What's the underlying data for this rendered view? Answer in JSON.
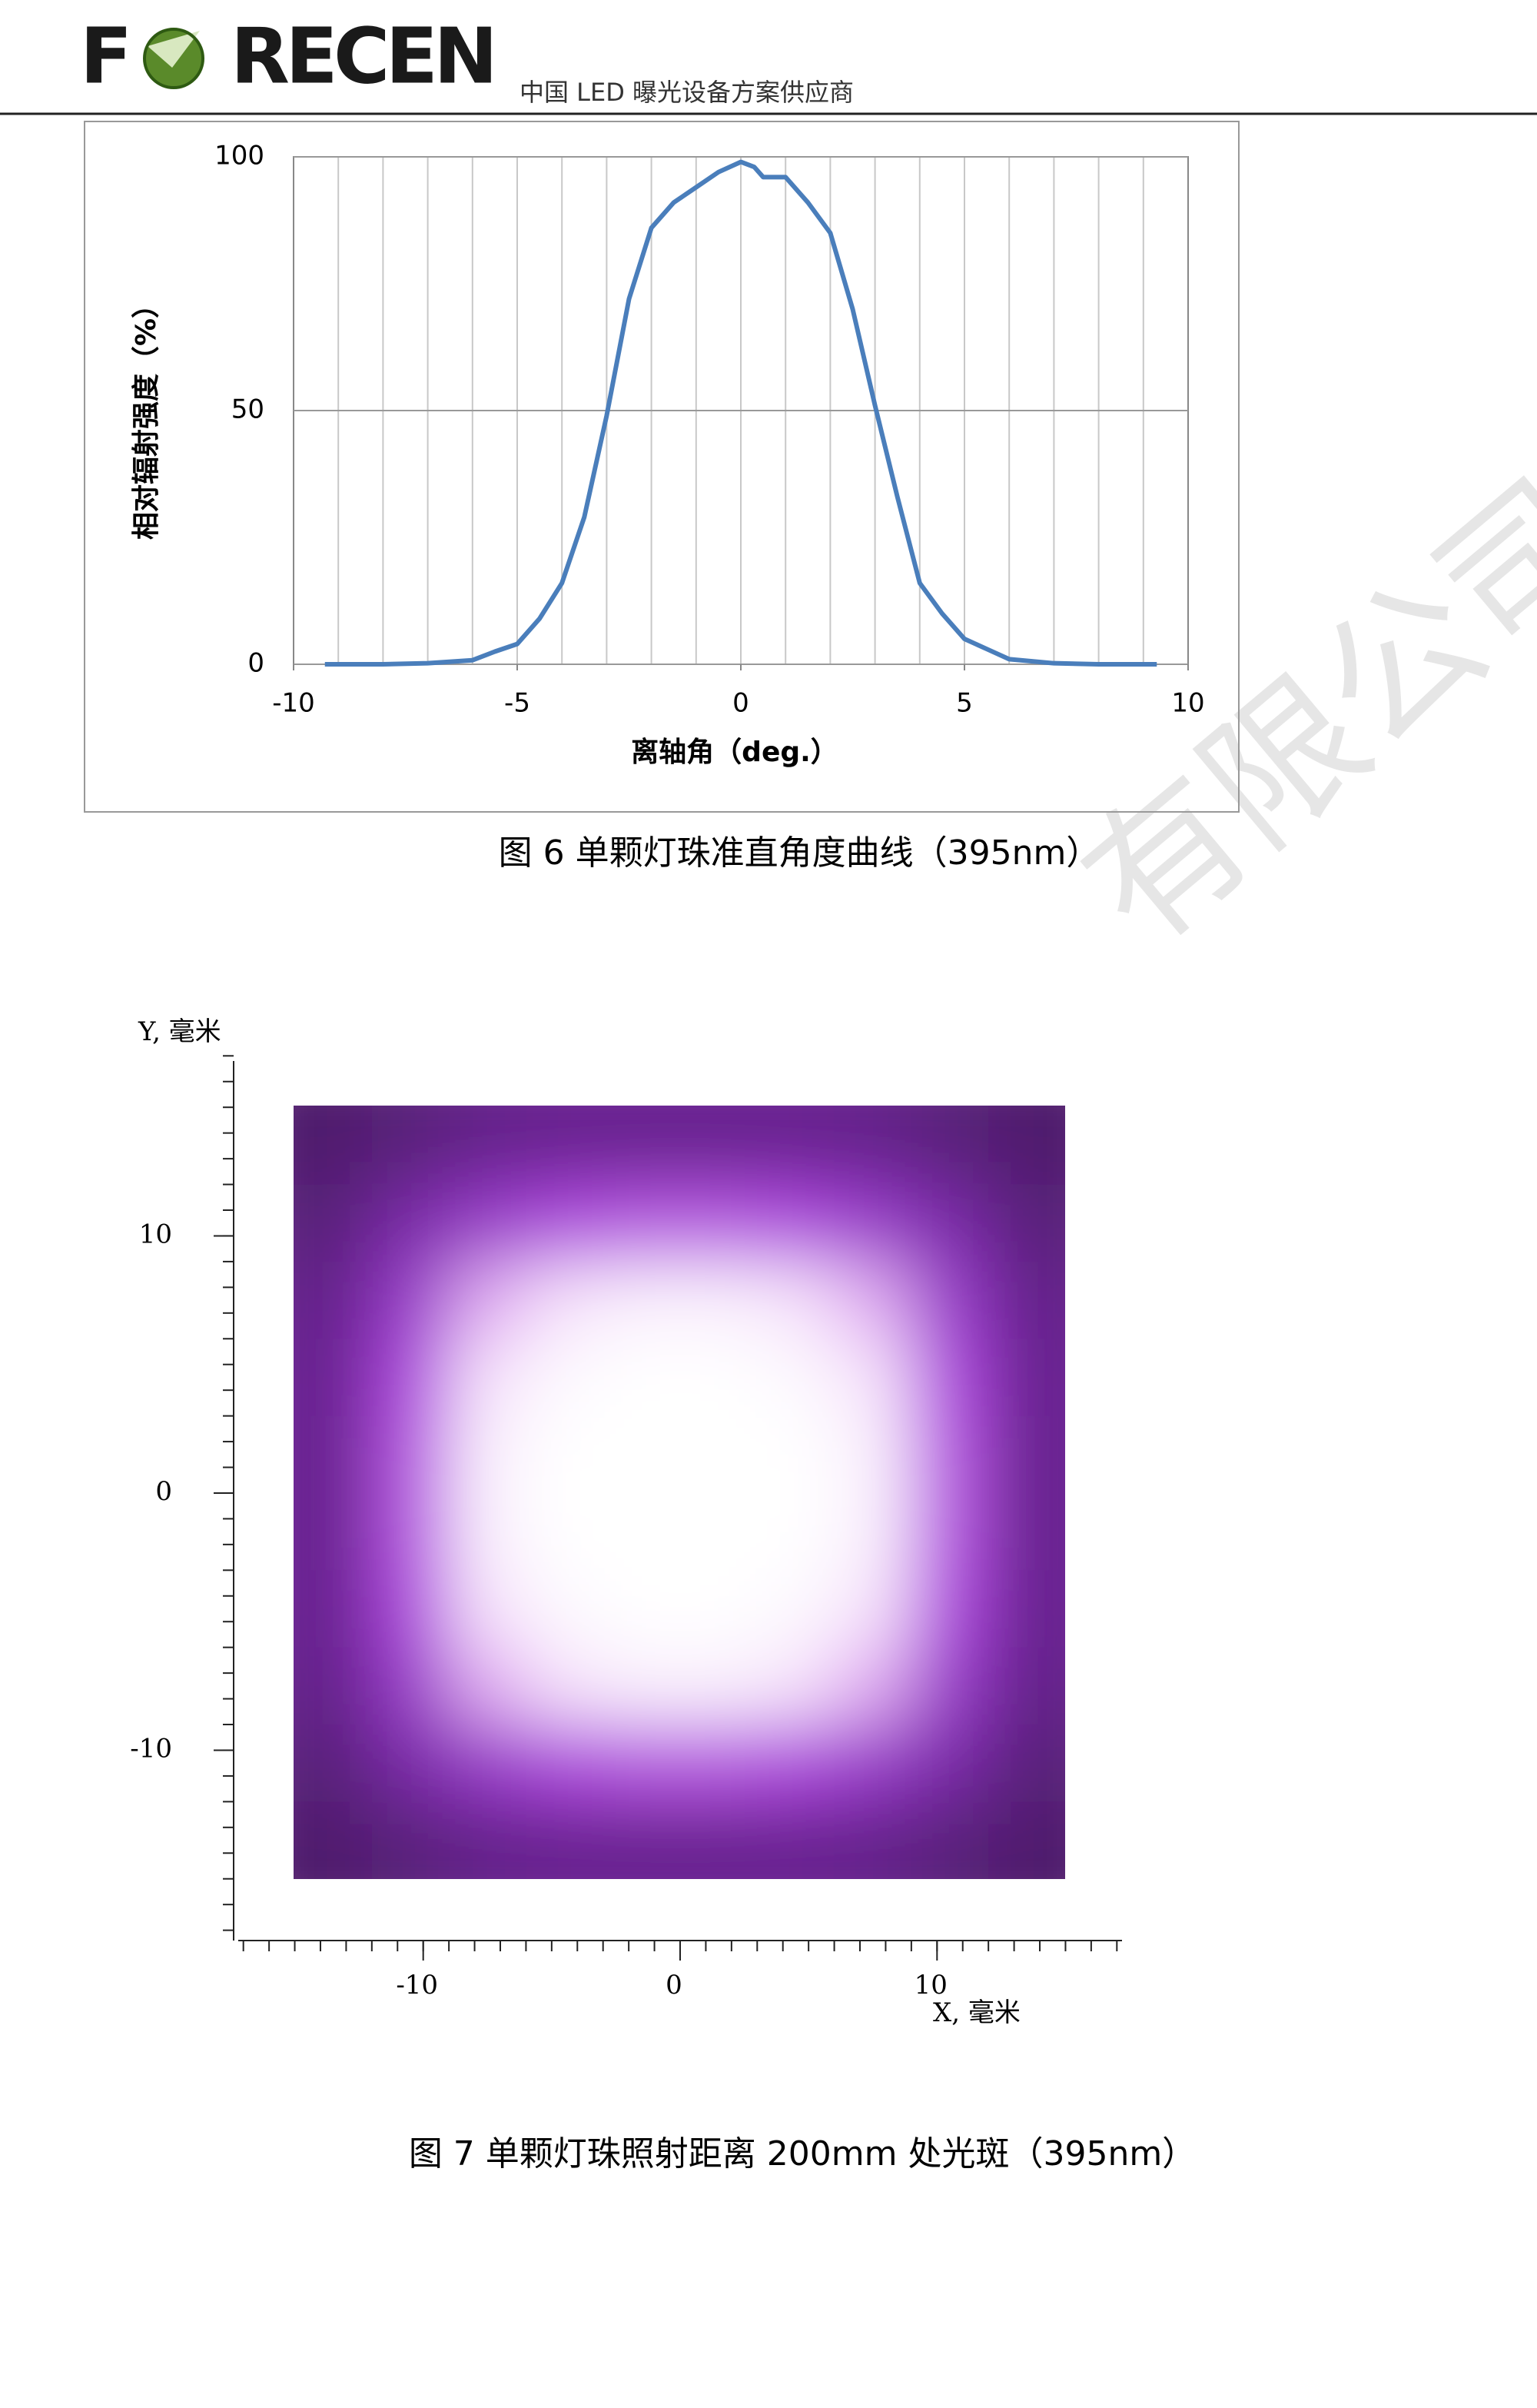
{
  "header": {
    "brand_left": "F",
    "brand_right": "RECEN",
    "tagline": "中国 LED 曝光设备方案供应商"
  },
  "watermark": "有限公司",
  "chart_data": [
    {
      "type": "line",
      "ylabel": "相对辐射强度（%）",
      "xlabel": "离轴角（deg.）",
      "caption": "图 6  单颗灯珠准直角度曲线（395nm）",
      "x": [
        -9.3,
        -8,
        -7,
        -6,
        -5.5,
        -5,
        -4.5,
        -4,
        -3.5,
        -3,
        -2.5,
        -2,
        -1.5,
        -1,
        -0.5,
        0,
        0.3,
        0.5,
        1,
        1.5,
        2,
        2.5,
        3,
        3.5,
        4,
        4.5,
        5,
        5.5,
        6,
        7,
        8,
        9.3
      ],
      "values": [
        0,
        0,
        0.2,
        0.8,
        2.5,
        4,
        9,
        16,
        29,
        49,
        72,
        86,
        91,
        94,
        97,
        99,
        98,
        96,
        96,
        91,
        85,
        70,
        51,
        33,
        16,
        10,
        5,
        3,
        1,
        0.2,
        0,
        0
      ],
      "color": "#4a7ebb",
      "xlim": [
        -10,
        10
      ],
      "ylim": [
        0,
        100
      ],
      "xticks": [
        -10,
        -5,
        0,
        5,
        10
      ],
      "yticks": [
        0,
        50,
        100
      ],
      "xgrid": [
        -9,
        -8,
        -7,
        -6,
        -5,
        -4,
        -3,
        -2,
        -1,
        0,
        1,
        2,
        3,
        4,
        5,
        6,
        7,
        8,
        9
      ],
      "grid": true
    },
    {
      "type": "heatmap",
      "xlabel": "X, 毫米",
      "ylabel": "Y, 毫米",
      "caption": "图 7  单颗灯珠照射距离 200mm 处光斑（395nm）",
      "xlim": [
        -17.2,
        17.2
      ],
      "ylim": [
        -17.4,
        16.8
      ],
      "xticks": [
        -10,
        0,
        10
      ],
      "yticks": [
        -10,
        0,
        10
      ],
      "minor_ticks": [
        -17,
        -16,
        -15,
        -14,
        -13,
        -12,
        -11,
        -10,
        -9,
        -8,
        -7,
        -6,
        -5,
        -4,
        -3,
        -2,
        -1,
        0,
        1,
        2,
        3,
        4,
        5,
        6,
        7,
        8,
        9,
        10,
        11,
        12,
        13,
        14,
        15,
        16,
        17
      ],
      "extent": [
        -15,
        15,
        -15,
        15
      ],
      "colorscale": [
        [
          0,
          "#3a1550"
        ],
        [
          30,
          "#7a2aa8"
        ],
        [
          55,
          "#b048e0"
        ],
        [
          80,
          "#ecc4f7"
        ],
        [
          100,
          "#ffffff"
        ]
      ],
      "z": [
        [
          10,
          15,
          20,
          22,
          22,
          22,
          22,
          20,
          15,
          10
        ],
        [
          15,
          30,
          45,
          55,
          58,
          58,
          55,
          45,
          30,
          15
        ],
        [
          20,
          45,
          75,
          90,
          95,
          95,
          90,
          75,
          45,
          20
        ],
        [
          22,
          55,
          90,
          98,
          100,
          100,
          98,
          90,
          55,
          22
        ],
        [
          22,
          58,
          95,
          100,
          100,
          100,
          100,
          95,
          58,
          22
        ],
        [
          22,
          58,
          95,
          100,
          100,
          100,
          100,
          95,
          58,
          22
        ],
        [
          22,
          55,
          90,
          98,
          100,
          100,
          98,
          90,
          55,
          22
        ],
        [
          20,
          45,
          75,
          90,
          95,
          95,
          90,
          75,
          45,
          20
        ],
        [
          15,
          30,
          45,
          55,
          58,
          58,
          55,
          45,
          30,
          15
        ],
        [
          10,
          15,
          20,
          22,
          22,
          22,
          22,
          20,
          15,
          10
        ]
      ]
    }
  ]
}
